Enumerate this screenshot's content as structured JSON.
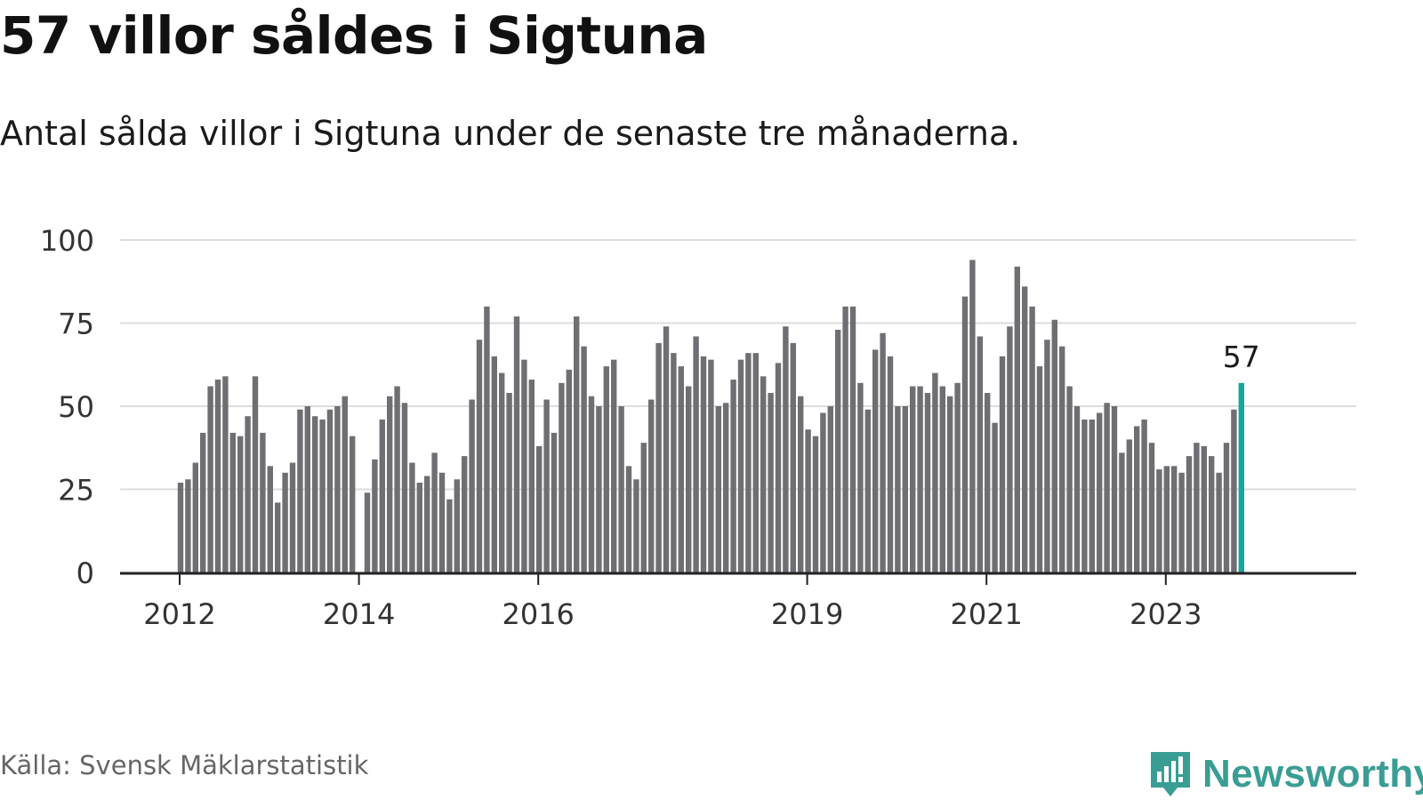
{
  "title": "57 villor såldes i Sigtuna",
  "subtitle": "Antal sålda villor i Sigtuna under de senaste tre månaderna.",
  "source": "Källa: Svensk Mäklarstatistik",
  "brand": {
    "name": "Newsworthy",
    "icon": "newsworthy-logo-icon",
    "color": "#3a9d94"
  },
  "colors": {
    "bar": "#6f6e73",
    "highlight": "#1aa59a",
    "grid": "#dddddd",
    "axis": "#222222"
  },
  "chart_data": {
    "type": "bar",
    "title": "57 villor såldes i Sigtuna",
    "xlabel": "",
    "ylabel": "",
    "ylim": [
      0,
      100
    ],
    "yticks": [
      0,
      25,
      50,
      75,
      100
    ],
    "xticks": [
      {
        "label": "2012",
        "index": 0
      },
      {
        "label": "2014",
        "index": 24
      },
      {
        "label": "2016",
        "index": 48
      },
      {
        "label": "2019",
        "index": 84
      },
      {
        "label": "2021",
        "index": 108
      },
      {
        "label": "2023",
        "index": 132
      }
    ],
    "total_slots": 150,
    "start": "2012-01",
    "highlight_index": 142,
    "highlight_label": "57",
    "series": [
      {
        "name": "Antal sålda villor",
        "values": [
          27,
          28,
          33,
          42,
          56,
          58,
          59,
          42,
          41,
          47,
          59,
          42,
          32,
          21,
          30,
          33,
          49,
          50,
          47,
          46,
          49,
          50,
          53,
          41,
          null,
          24,
          34,
          46,
          53,
          56,
          51,
          33,
          27,
          29,
          36,
          30,
          22,
          28,
          35,
          52,
          70,
          80,
          65,
          60,
          54,
          77,
          64,
          58,
          38,
          52,
          42,
          57,
          61,
          77,
          68,
          53,
          50,
          62,
          64,
          50,
          32,
          28,
          39,
          52,
          69,
          74,
          66,
          62,
          56,
          71,
          65,
          64,
          50,
          51,
          58,
          64,
          66,
          66,
          59,
          54,
          63,
          74,
          69,
          53,
          43,
          41,
          48,
          50,
          73,
          80,
          80,
          57,
          49,
          67,
          72,
          65,
          50,
          50,
          56,
          56,
          54,
          60,
          56,
          53,
          57,
          83,
          94,
          71,
          54,
          45,
          65,
          74,
          92,
          86,
          80,
          62,
          70,
          76,
          68,
          56,
          50,
          46,
          46,
          48,
          51,
          50,
          36,
          40,
          44,
          46,
          39,
          31,
          32,
          32,
          30,
          35,
          39,
          38,
          35,
          30,
          39,
          49,
          57
        ]
      }
    ]
  }
}
